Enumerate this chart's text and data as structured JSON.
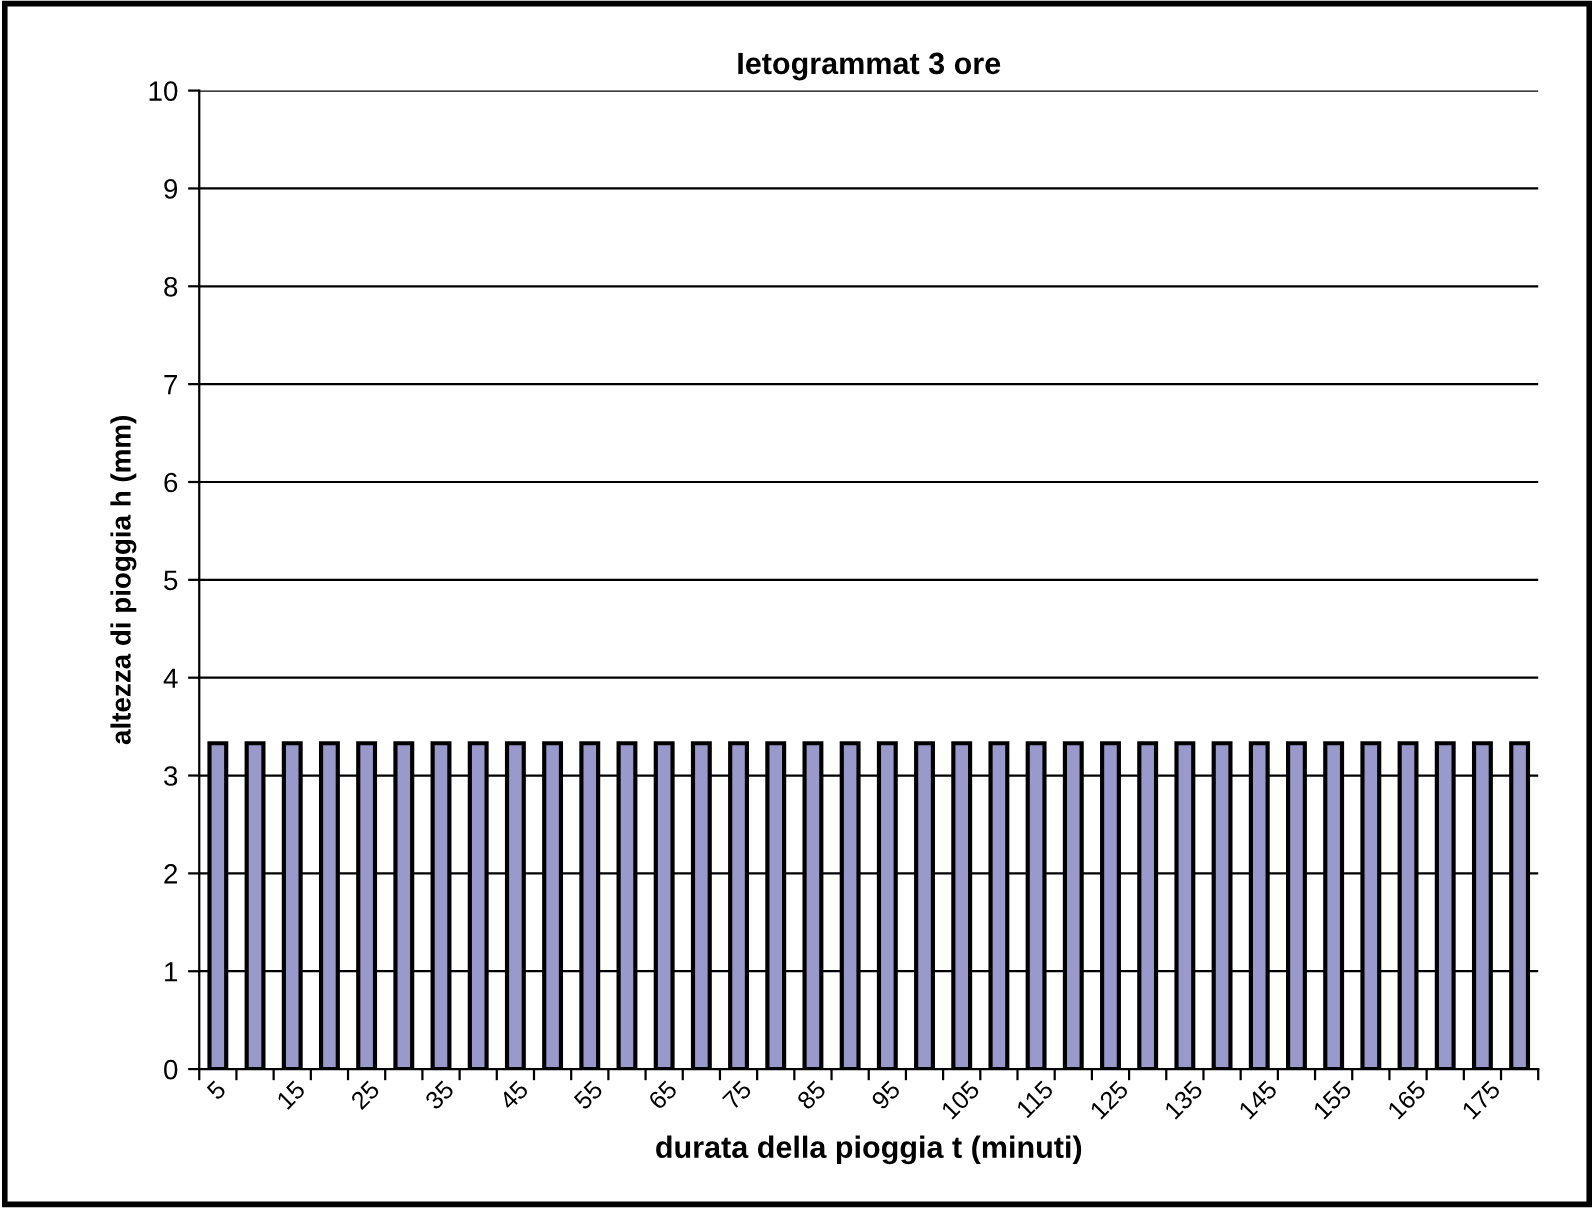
{
  "chart_data": {
    "type": "bar",
    "title": "Ietogrammat 3 ore",
    "xlabel": "durata della pioggia t (minuti)",
    "ylabel": "altezza di pioggia h (mm)",
    "categories": [
      "5",
      null,
      "15",
      null,
      "25",
      null,
      "35",
      null,
      "45",
      null,
      "55",
      null,
      "65",
      null,
      "75",
      null,
      "85",
      null,
      "95",
      null,
      "105",
      null,
      "115",
      null,
      "125",
      null,
      "135",
      null,
      "145",
      null,
      "155",
      null,
      "165",
      null,
      "175",
      null
    ],
    "values": [
      3.33,
      3.33,
      3.33,
      3.33,
      3.33,
      3.33,
      3.33,
      3.33,
      3.33,
      3.33,
      3.33,
      3.33,
      3.33,
      3.33,
      3.33,
      3.33,
      3.33,
      3.33,
      3.33,
      3.33,
      3.33,
      3.33,
      3.33,
      3.33,
      3.33,
      3.33,
      3.33,
      3.33,
      3.33,
      3.33,
      3.33,
      3.33,
      3.33,
      3.33,
      3.33,
      3.33
    ],
    "color": "#9999cc",
    "ylim": [
      0,
      10
    ],
    "yticks": [
      0,
      1,
      2,
      3,
      4,
      5,
      6,
      7,
      8,
      9,
      10
    ],
    "grid": "y"
  }
}
